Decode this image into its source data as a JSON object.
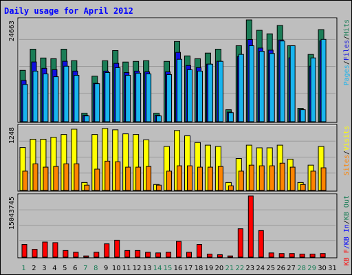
{
  "title": "Daily usage for April 2012",
  "colors": {
    "background": "#bebebe",
    "title": "#0000ff",
    "hits": "#1b7d57",
    "files": "#1010e0",
    "pages": "#18b4ee",
    "visits": "#ffff00",
    "sites": "#ff8400",
    "kbf": "#ff0000",
    "kbin": "#0000ff",
    "kbout": "#1b7d57",
    "weekday_label": "#000000",
    "weekend_label": "#1b7d57"
  },
  "chart_data": {
    "type": "bar",
    "days": [
      "1",
      "2",
      "3",
      "4",
      "5",
      "6",
      "7",
      "8",
      "9",
      "10",
      "11",
      "12",
      "13",
      "14",
      "15",
      "16",
      "17",
      "18",
      "19",
      "20",
      "21",
      "22",
      "23",
      "24",
      "25",
      "26",
      "27",
      "28",
      "29",
      "30",
      "31"
    ],
    "weekend_days": [
      "1",
      "7",
      "8",
      "14",
      "15",
      "21",
      "22",
      "28",
      "29"
    ],
    "panels": [
      {
        "id": "hits",
        "max_label": "24663",
        "ymax": 24663,
        "legend": [
          "Pages",
          "/",
          "Files",
          "/",
          "Hits"
        ],
        "legend_colors": [
          "#18b4ee",
          "#000000",
          "#1010e0",
          "#000000",
          "#1b7d57"
        ],
        "series": [
          {
            "name": "Hits",
            "color": "#1b7d57",
            "values": [
              12450,
              17580,
              15440,
              15270,
              17580,
              14790,
              2060,
              11030,
              14770,
              17240,
              14460,
              14620,
              14790,
              2060,
              14620,
              19440,
              15950,
              15270,
              16630,
              17580,
              2900,
              18410,
              24663,
              22150,
              21300,
              23320,
              18410,
              3240,
              16300,
              22320,
              0
            ]
          },
          {
            "name": "Files",
            "color": "#1010e0",
            "values": [
              10000,
              14480,
              12940,
              12600,
              14650,
              12260,
              1570,
              9310,
              12260,
              14140,
              11920,
              12260,
              12090,
              1570,
              12090,
              16800,
              13620,
              13120,
              13960,
              14650,
              2330,
              15820,
              19920,
              17850,
              17340,
              19800,
              15480,
              2900,
              13460,
              19610,
              0
            ]
          },
          {
            "name": "Pages",
            "color": "#18b4ee",
            "values": [
              9030,
              12260,
              11580,
              10900,
              13450,
              11240,
              1400,
              9220,
              11920,
              13100,
              11240,
              11760,
              11580,
              1400,
              11420,
              15130,
              12600,
              12260,
              13950,
              14630,
              2200,
              16310,
              18410,
              17060,
              16540,
              19560,
              18410,
              2900,
              15460,
              19950,
              0
            ]
          }
        ]
      },
      {
        "id": "visits",
        "max_label": "1248",
        "ymax": 1248,
        "legend": [
          "Sites",
          "/",
          "Visits"
        ],
        "legend_colors": [
          "#ff8400",
          "#000000",
          "#ffff00"
        ],
        "series": [
          {
            "name": "Visits",
            "color": "#ffff00",
            "values": [
              837,
              1000,
              1000,
              1039,
              1092,
              1195,
              156,
              1092,
              1209,
              1183,
              1105,
              1092,
              988,
              117,
              858,
              1169,
              1066,
              936,
              884,
              858,
              156,
              624,
              884,
              832,
              832,
              884,
              611,
              156,
              494,
              858,
              0
            ]
          },
          {
            "name": "Sites",
            "color": "#ff8400",
            "values": [
              377,
              520,
              455,
              468,
              520,
              520,
              104,
              416,
              572,
              559,
              455,
              455,
              468,
              104,
              377,
              481,
              481,
              455,
              455,
              468,
              91,
              377,
              494,
              481,
              481,
              533,
              455,
              117,
              377,
              442,
              0
            ]
          }
        ]
      },
      {
        "id": "kbf",
        "max_label": "15043745",
        "ymax": 15043745,
        "legend": [
          "KB F",
          "/",
          "KB In",
          "/",
          "KB Out"
        ],
        "legend_colors": [
          "#ff0000",
          "#0000ff",
          "#0000ff",
          "#000000",
          "#1b7d57"
        ],
        "series": [
          {
            "name": "KB F",
            "color": "#ff0000",
            "values": [
              3120000,
              1930000,
              3710000,
              3560000,
              1630000,
              1190000,
              300000,
              1190000,
              3270000,
              4160000,
              1630000,
              1630000,
              1190000,
              1040000,
              1190000,
              3860000,
              1190000,
              3120000,
              740000,
              600000,
              300000,
              6980000,
              15043745,
              6530000,
              1040000,
              890000,
              890000,
              740000,
              740000,
              890000,
              0
            ]
          }
        ]
      }
    ]
  }
}
